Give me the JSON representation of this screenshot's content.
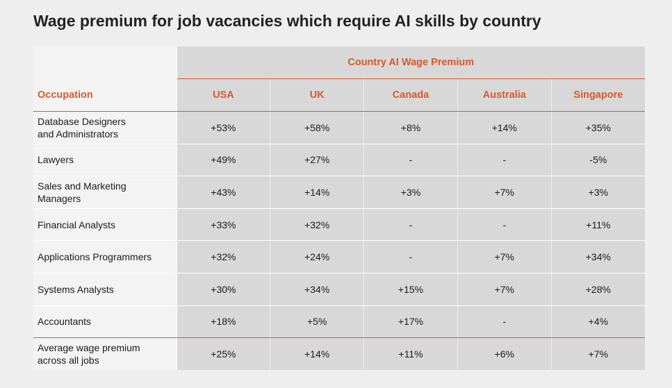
{
  "title": "Wage premium for job vacancies which require AI skills by country",
  "chart_data": {
    "type": "table",
    "title": "Wage premium for job vacancies which require AI skills by country",
    "group_header": "Country AI Wage Premium",
    "row_header": "Occupation",
    "columns": [
      "USA",
      "UK",
      "Canada",
      "Australia",
      "Singapore"
    ],
    "rows": [
      {
        "occupation": "Database Designers and Administrators",
        "lines": [
          "Database Designers",
          "and Administrators"
        ],
        "values": [
          "+53%",
          "+58%",
          "+8%",
          "+14%",
          "+35%"
        ]
      },
      {
        "occupation": "Lawyers",
        "lines": [
          "Lawyers"
        ],
        "values": [
          "+49%",
          "+27%",
          "-",
          "-",
          "-5%"
        ]
      },
      {
        "occupation": "Sales and Marketing Managers",
        "lines": [
          "Sales and Marketing",
          "Managers"
        ],
        "values": [
          "+43%",
          "+14%",
          "+3%",
          "+7%",
          "+3%"
        ]
      },
      {
        "occupation": "Financial Analysts",
        "lines": [
          "Financial Analysts"
        ],
        "values": [
          "+33%",
          "+32%",
          "-",
          "-",
          "+11%"
        ]
      },
      {
        "occupation": "Applications Programmers",
        "lines": [
          "Applications Programmers"
        ],
        "values": [
          "+32%",
          "+24%",
          "-",
          "+7%",
          "+34%"
        ]
      },
      {
        "occupation": "Systems Analysts",
        "lines": [
          "Systems Analysts"
        ],
        "values": [
          "+30%",
          "+34%",
          "+15%",
          "+7%",
          "+28%"
        ]
      },
      {
        "occupation": "Accountants",
        "lines": [
          "Accountants"
        ],
        "values": [
          "+18%",
          "+5%",
          "+17%",
          "-",
          "+4%"
        ]
      }
    ],
    "average_row": {
      "occupation": "Average wage premium across all jobs",
      "lines": [
        "Average wage premium",
        "across all jobs"
      ],
      "values": [
        "+25%",
        "+14%",
        "+11%",
        "+6%",
        "+7%"
      ]
    },
    "accent_color": "#d9582b"
  }
}
